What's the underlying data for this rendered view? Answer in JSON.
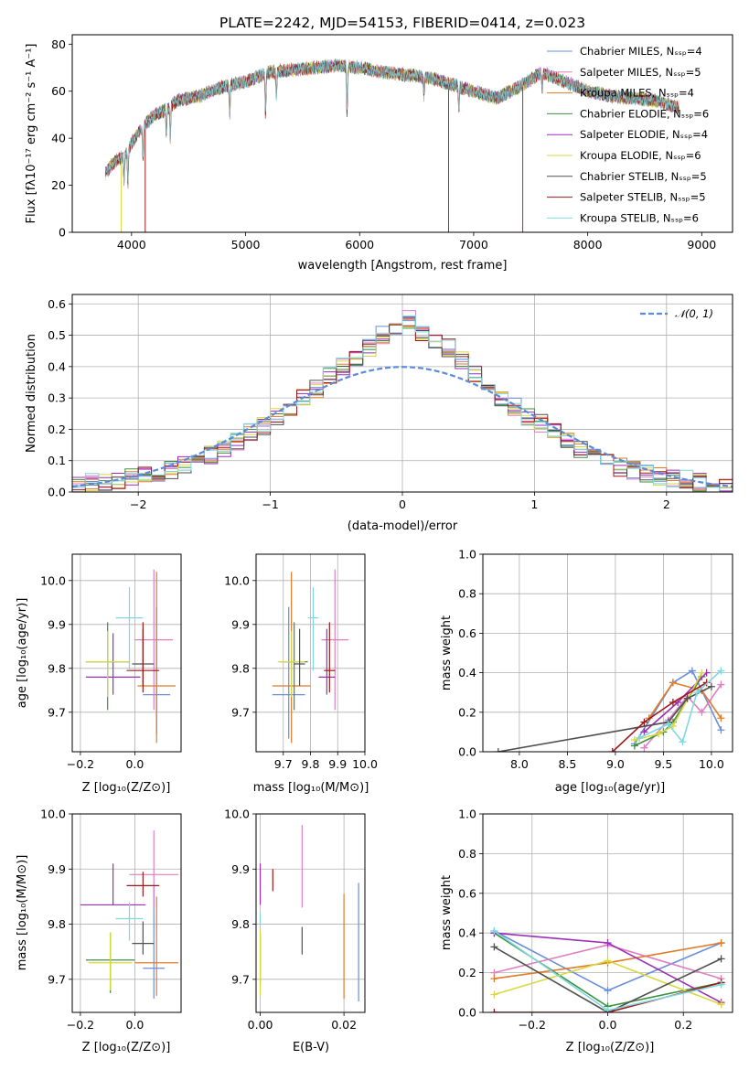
{
  "chart_data": [
    {
      "id": "spectrum",
      "type": "line",
      "title": "PLATE=2242, MJD=54153, FIBERID=0414, z=0.023",
      "xlabel": "wavelength [Angstrom, rest frame]",
      "ylabel": "Flux [fλ10⁻¹⁷ erg cm⁻² s⁻¹ A⁻¹]",
      "xlim": [
        3480,
        9270
      ],
      "ylim": [
        0,
        84
      ],
      "xticks": [
        4000,
        5000,
        6000,
        7000,
        8000,
        9000
      ],
      "yticks": [
        0,
        20,
        40,
        60,
        80
      ],
      "grid": false,
      "legend_position": "upper-right",
      "series": [
        {
          "name": "Chabrier MILES, Nₛₛₚ=4",
          "color": "#6a8fd8"
        },
        {
          "name": "Salpeter MILES, Nₛₛₚ=5",
          "color": "#e07fc0"
        },
        {
          "name": "Kroupa MILES, Nₛₛₚ=4",
          "color": "#e07b28"
        },
        {
          "name": "Chabrier ELODIE, Nₛₛₚ=6",
          "color": "#3f8f3f"
        },
        {
          "name": "Salpeter ELODIE, Nₛₛₚ=4",
          "color": "#9b2fb8"
        },
        {
          "name": "Kroupa ELODIE, Nₛₛₚ=6",
          "color": "#d8d840"
        },
        {
          "name": "Chabrier STELIB, Nₛₛₚ=5",
          "color": "#505050"
        },
        {
          "name": "Salpeter STELIB, Nₛₛₚ=5",
          "color": "#a01818"
        },
        {
          "name": "Kroupa STELIB, Nₛₛₚ=6",
          "color": "#7fd8e0"
        }
      ],
      "continuum": {
        "x": [
          3770,
          3850,
          3950,
          4000,
          4100,
          4200,
          4300,
          4400,
          4600,
          4800,
          5000,
          5200,
          5400,
          5600,
          5800,
          6000,
          6200,
          6400,
          6600,
          6800,
          7000,
          7200,
          7400,
          7600,
          7800,
          8000,
          8200,
          8400,
          8600,
          8800
        ],
        "y": [
          25,
          30,
          33,
          38,
          45,
          50,
          52,
          56,
          58,
          62,
          64,
          68,
          69,
          70,
          71,
          70,
          68,
          67,
          66,
          63,
          60,
          57,
          62,
          68,
          64,
          60,
          58,
          57,
          56,
          53
        ]
      }
    },
    {
      "id": "residuals",
      "type": "histogram",
      "xlabel": "(data-model)/error",
      "ylabel": "Normed distribution",
      "xlim": [
        -2.5,
        2.5
      ],
      "ylim": [
        0,
        0.63
      ],
      "xticks": [
        -2,
        -1,
        0,
        1,
        2
      ],
      "yticks": [
        0.0,
        0.1,
        0.2,
        0.3,
        0.4,
        0.5,
        0.6
      ],
      "grid": true,
      "legend_position": "upper-right",
      "reference_curve": {
        "name": "𝒩(0, 1)",
        "color": "#5b8ad8",
        "style": "dashed"
      },
      "bin_edges": [
        -2.5,
        -2.4,
        -2.3,
        -2.2,
        -2.1,
        -2.0,
        -1.9,
        -1.8,
        -1.7,
        -1.6,
        -1.5,
        -1.4,
        -1.3,
        -1.2,
        -1.1,
        -1.0,
        -0.9,
        -0.8,
        -0.7,
        -0.6,
        -0.5,
        -0.4,
        -0.3,
        -0.2,
        -0.1,
        0.0,
        0.1,
        0.2,
        0.3,
        0.4,
        0.5,
        0.6,
        0.7,
        0.8,
        0.9,
        1.0,
        1.1,
        1.2,
        1.3,
        1.4,
        1.5,
        1.6,
        1.7,
        1.8,
        1.9,
        2.0,
        2.1,
        2.2,
        2.3,
        2.4,
        2.5
      ],
      "hist_values": [
        0.02,
        0.03,
        0.03,
        0.04,
        0.05,
        0.05,
        0.06,
        0.07,
        0.09,
        0.1,
        0.12,
        0.14,
        0.16,
        0.19,
        0.21,
        0.24,
        0.27,
        0.3,
        0.33,
        0.37,
        0.4,
        0.43,
        0.46,
        0.5,
        0.53,
        0.55,
        0.5,
        0.48,
        0.46,
        0.42,
        0.38,
        0.34,
        0.3,
        0.27,
        0.24,
        0.22,
        0.19,
        0.16,
        0.14,
        0.12,
        0.1,
        0.08,
        0.07,
        0.06,
        0.05,
        0.04,
        0.04,
        0.03,
        0.02,
        0.02
      ]
    },
    {
      "id": "age-vs-Z",
      "type": "errorbar",
      "xlabel": "Z [log₁₀(Z/Z⊙)]",
      "ylabel": "age  [log₁₀(age/yr)]",
      "xlim": [
        -0.23,
        0.17
      ],
      "ylim": [
        9.61,
        10.06
      ],
      "xticks": [
        -0.2,
        0.0
      ],
      "yticks": [
        9.7,
        9.8,
        9.9,
        10.0
      ],
      "grid": true,
      "points": [
        {
          "x": 0.08,
          "y": 9.74,
          "xerr": 0.05,
          "yerr": [
            0.09,
            0.2
          ],
          "color": "#6a8fd8"
        },
        {
          "x": 0.07,
          "y": 9.865,
          "xerr": 0.07,
          "yerr": [
            0.16,
            0.16
          ],
          "color": "#e07fc0"
        },
        {
          "x": 0.08,
          "y": 9.76,
          "xerr": 0.07,
          "yerr": [
            0.13,
            0.26
          ],
          "color": "#e07b28"
        },
        {
          "x": -0.1,
          "y": 9.815,
          "xerr": 0.08,
          "yerr": [
            0.11,
            0.09
          ],
          "color": "#3f8f3f"
        },
        {
          "x": -0.08,
          "y": 9.78,
          "xerr": 0.1,
          "yerr": [
            0.04,
            0.1
          ],
          "color": "#9b2fb8"
        },
        {
          "x": -0.1,
          "y": 9.815,
          "xerr": 0.08,
          "yerr": [
            0.08,
            0.07
          ],
          "color": "#d8d840"
        },
        {
          "x": 0.03,
          "y": 9.81,
          "xerr": 0.04,
          "yerr": [
            0.05,
            0.08
          ],
          "color": "#505050"
        },
        {
          "x": 0.03,
          "y": 9.795,
          "xerr": 0.06,
          "yerr": [
            0.05,
            0.11
          ],
          "color": "#a01818"
        },
        {
          "x": -0.02,
          "y": 9.915,
          "xerr": 0.05,
          "yerr": [
            0.12,
            0.07
          ],
          "color": "#7fd8e0"
        }
      ]
    },
    {
      "id": "age-vs-mass",
      "type": "errorbar",
      "xlabel": "mass [log₁₀(M/M⊙)]",
      "xlim": [
        9.6,
        10.0
      ],
      "ylim": [
        9.61,
        10.06
      ],
      "xticks": [
        9.7,
        9.8,
        9.9,
        10.0
      ],
      "yticks": [
        9.7,
        9.8,
        9.9,
        10.0
      ],
      "grid": true,
      "points": [
        {
          "x": 9.72,
          "y": 9.74,
          "xerr": 0.06,
          "yerr": [
            0.1,
            0.2
          ],
          "color": "#6a8fd8"
        },
        {
          "x": 9.89,
          "y": 9.865,
          "xerr": 0.05,
          "yerr": [
            0.16,
            0.16
          ],
          "color": "#e07fc0"
        },
        {
          "x": 9.73,
          "y": 9.76,
          "xerr": 0.07,
          "yerr": [
            0.13,
            0.26
          ],
          "color": "#e07b28"
        },
        {
          "x": 9.74,
          "y": 9.815,
          "xerr": 0.05,
          "yerr": [
            0.11,
            0.09
          ],
          "color": "#3f8f3f"
        },
        {
          "x": 9.86,
          "y": 9.78,
          "xerr": 0.03,
          "yerr": [
            0.04,
            0.11
          ],
          "color": "#9b2fb8"
        },
        {
          "x": 9.73,
          "y": 9.815,
          "xerr": 0.05,
          "yerr": [
            0.08,
            0.07
          ],
          "color": "#d8d840"
        },
        {
          "x": 9.76,
          "y": 9.81,
          "xerr": 0.02,
          "yerr": [
            0.05,
            0.08
          ],
          "color": "#505050"
        },
        {
          "x": 9.87,
          "y": 9.795,
          "xerr": 0.02,
          "yerr": [
            0.05,
            0.11
          ],
          "color": "#a01818"
        },
        {
          "x": 9.81,
          "y": 9.915,
          "xerr": 0.02,
          "yerr": [
            0.12,
            0.07
          ],
          "color": "#7fd8e0"
        }
      ]
    },
    {
      "id": "mass-weight-vs-age",
      "type": "line",
      "xlabel": "age  [log₁₀(age/yr)]",
      "ylabel": "mass weight",
      "xlim": [
        7.62,
        10.22
      ],
      "ylim": [
        0,
        1.0
      ],
      "xticks": [
        8.0,
        8.5,
        9.0,
        9.5,
        10.0
      ],
      "yticks": [
        0.0,
        0.2,
        0.4,
        0.6,
        0.8,
        1.0
      ],
      "grid": true,
      "series": [
        {
          "color": "#6a8fd8",
          "x": [
            9.2,
            9.6,
            9.8,
            10.1
          ],
          "y": [
            0.04,
            0.35,
            0.41,
            0.11
          ]
        },
        {
          "color": "#e07fc0",
          "x": [
            9.3,
            9.55,
            9.75,
            9.9,
            10.1
          ],
          "y": [
            0.02,
            0.16,
            0.28,
            0.2,
            0.34
          ]
        },
        {
          "color": "#e07b28",
          "x": [
            9.35,
            9.6,
            9.9,
            10.1
          ],
          "y": [
            0.17,
            0.35,
            0.31,
            0.17
          ]
        },
        {
          "color": "#3f8f3f",
          "x": [
            9.2,
            9.5,
            9.6,
            9.9
          ],
          "y": [
            0.03,
            0.1,
            0.15,
            0.38
          ]
        },
        {
          "color": "#9b2fb8",
          "x": [
            9.3,
            9.65,
            9.95
          ],
          "y": [
            0.1,
            0.25,
            0.4
          ]
        },
        {
          "color": "#d8d840",
          "x": [
            9.2,
            9.45,
            9.6,
            9.9
          ],
          "y": [
            0.06,
            0.09,
            0.13,
            0.4
          ]
        },
        {
          "color": "#505050",
          "x": [
            7.78,
            9.55,
            9.75,
            10.0
          ],
          "y": [
            0.0,
            0.15,
            0.27,
            0.33
          ]
        },
        {
          "color": "#a01818",
          "x": [
            8.97,
            9.3,
            9.6,
            9.95
          ],
          "y": [
            0.0,
            0.15,
            0.25,
            0.35
          ]
        },
        {
          "color": "#7fd8e0",
          "x": [
            9.25,
            9.55,
            9.7,
            9.85,
            10.1
          ],
          "y": [
            0.07,
            0.14,
            0.05,
            0.3,
            0.41
          ]
        }
      ]
    },
    {
      "id": "mass-vs-Z",
      "type": "errorbar",
      "xlabel": "Z [log₁₀(Z/Z⊙)]",
      "ylabel": "mass [log₁₀(M/M⊙)]",
      "xlim": [
        -0.23,
        0.17
      ],
      "ylim": [
        9.64,
        10.0
      ],
      "xticks": [
        -0.2,
        0.0
      ],
      "yticks": [
        9.7,
        9.8,
        9.9,
        10.0
      ],
      "grid": true,
      "points": [
        {
          "x": 0.07,
          "y": 9.72,
          "xerr": 0.04,
          "yerr": [
            0.055,
            0.15
          ],
          "color": "#6a8fd8"
        },
        {
          "x": 0.07,
          "y": 9.89,
          "xerr": 0.09,
          "yerr": [
            0.06,
            0.08
          ],
          "color": "#e07fc0"
        },
        {
          "x": 0.08,
          "y": 9.73,
          "xerr": 0.08,
          "yerr": [
            0.06,
            0.12
          ],
          "color": "#e07b28"
        },
        {
          "x": -0.09,
          "y": 9.735,
          "xerr": 0.09,
          "yerr": [
            0.06,
            0.05
          ],
          "color": "#3f8f3f"
        },
        {
          "x": -0.08,
          "y": 9.835,
          "xerr": 0.12,
          "yerr": [
            0.0,
            0.075
          ],
          "color": "#9b2fb8"
        },
        {
          "x": -0.09,
          "y": 9.73,
          "xerr": 0.08,
          "yerr": [
            0.05,
            0.055
          ],
          "color": "#d8d840"
        },
        {
          "x": 0.03,
          "y": 9.765,
          "xerr": 0.04,
          "yerr": [
            0.02,
            0.04
          ],
          "color": "#505050"
        },
        {
          "x": 0.03,
          "y": 9.87,
          "xerr": 0.06,
          "yerr": [
            0.02,
            0.025
          ],
          "color": "#a01818"
        },
        {
          "x": -0.02,
          "y": 9.81,
          "xerr": 0.05,
          "yerr": [
            0.04,
            0.03
          ],
          "color": "#7fd8e0"
        }
      ]
    },
    {
      "id": "mass-vs-EBV",
      "type": "errorbar",
      "xlabel": "E(B-V)",
      "xlim": [
        -0.001,
        0.025
      ],
      "ylim": [
        9.64,
        10.0
      ],
      "xticks": [
        0.0,
        0.02
      ],
      "yticks": [
        9.7,
        9.8,
        9.9,
        10.0
      ],
      "grid": true,
      "points": [
        {
          "x": 0.0235,
          "y": 9.75,
          "yerr": [
            0.09,
            0.125
          ],
          "color": "#6a8fd8"
        },
        {
          "x": 0.01,
          "y": 9.89,
          "yerr": [
            0.06,
            0.09
          ],
          "color": "#e07fc0"
        },
        {
          "x": 0.02,
          "y": 9.76,
          "yerr": [
            0.095,
            0.095
          ],
          "color": "#e07b28"
        },
        {
          "x": 0.0,
          "y": 9.74,
          "yerr": [
            0.05,
            0.045
          ],
          "color": "#3f8f3f"
        },
        {
          "x": 0.0,
          "y": 9.87,
          "yerr": [
            0.035,
            0.04
          ],
          "color": "#9b2fb8"
        },
        {
          "x": 0.0,
          "y": 9.72,
          "yerr": [
            0.05,
            0.07
          ],
          "color": "#d8d840"
        },
        {
          "x": 0.01,
          "y": 9.77,
          "yerr": [
            0.025,
            0.025
          ],
          "color": "#505050"
        },
        {
          "x": 0.003,
          "y": 9.88,
          "yerr": [
            0.02,
            0.02
          ],
          "color": "#a01818"
        },
        {
          "x": 0.0,
          "y": 9.81,
          "yerr": [
            0.01,
            0.01
          ],
          "color": "#7fd8e0"
        }
      ]
    },
    {
      "id": "mass-weight-vs-Z",
      "type": "line",
      "xlabel": "Z [log₁₀(Z/Z⊙)]",
      "ylabel": "mass weight",
      "xlim": [
        -0.33,
        0.33
      ],
      "ylim": [
        0,
        1.0
      ],
      "xticks": [
        -0.2,
        0.0,
        0.2
      ],
      "yticks": [
        0.0,
        0.2,
        0.4,
        0.6,
        0.8,
        1.0
      ],
      "grid": true,
      "series": [
        {
          "color": "#6a8fd8",
          "x": [
            -0.3,
            0.0,
            0.3
          ],
          "y": [
            0.41,
            0.11,
            0.35
          ]
        },
        {
          "color": "#e07fc0",
          "x": [
            -0.3,
            0.0,
            0.3
          ],
          "y": [
            0.2,
            0.34,
            0.17
          ]
        },
        {
          "color": "#e07b28",
          "x": [
            -0.3,
            0.0,
            0.3
          ],
          "y": [
            0.17,
            0.25,
            0.35
          ]
        },
        {
          "color": "#3f8f3f",
          "x": [
            -0.3,
            0.0,
            0.3
          ],
          "y": [
            0.4,
            0.03,
            0.15
          ]
        },
        {
          "color": "#9b2fb8",
          "x": [
            -0.3,
            0.0,
            0.3
          ],
          "y": [
            0.4,
            0.35,
            0.05
          ]
        },
        {
          "color": "#d8d840",
          "x": [
            -0.3,
            0.0,
            0.3
          ],
          "y": [
            0.09,
            0.26,
            0.04
          ]
        },
        {
          "color": "#505050",
          "x": [
            -0.3,
            0.0,
            0.3
          ],
          "y": [
            0.33,
            0.0,
            0.27
          ]
        },
        {
          "color": "#a01818",
          "x": [
            -0.3,
            0.0,
            0.3
          ],
          "y": [
            0.0,
            0.0,
            0.15
          ]
        },
        {
          "color": "#7fd8e0",
          "x": [
            -0.3,
            0.0,
            0.3
          ],
          "y": [
            0.41,
            0.01,
            0.14
          ]
        }
      ]
    }
  ]
}
